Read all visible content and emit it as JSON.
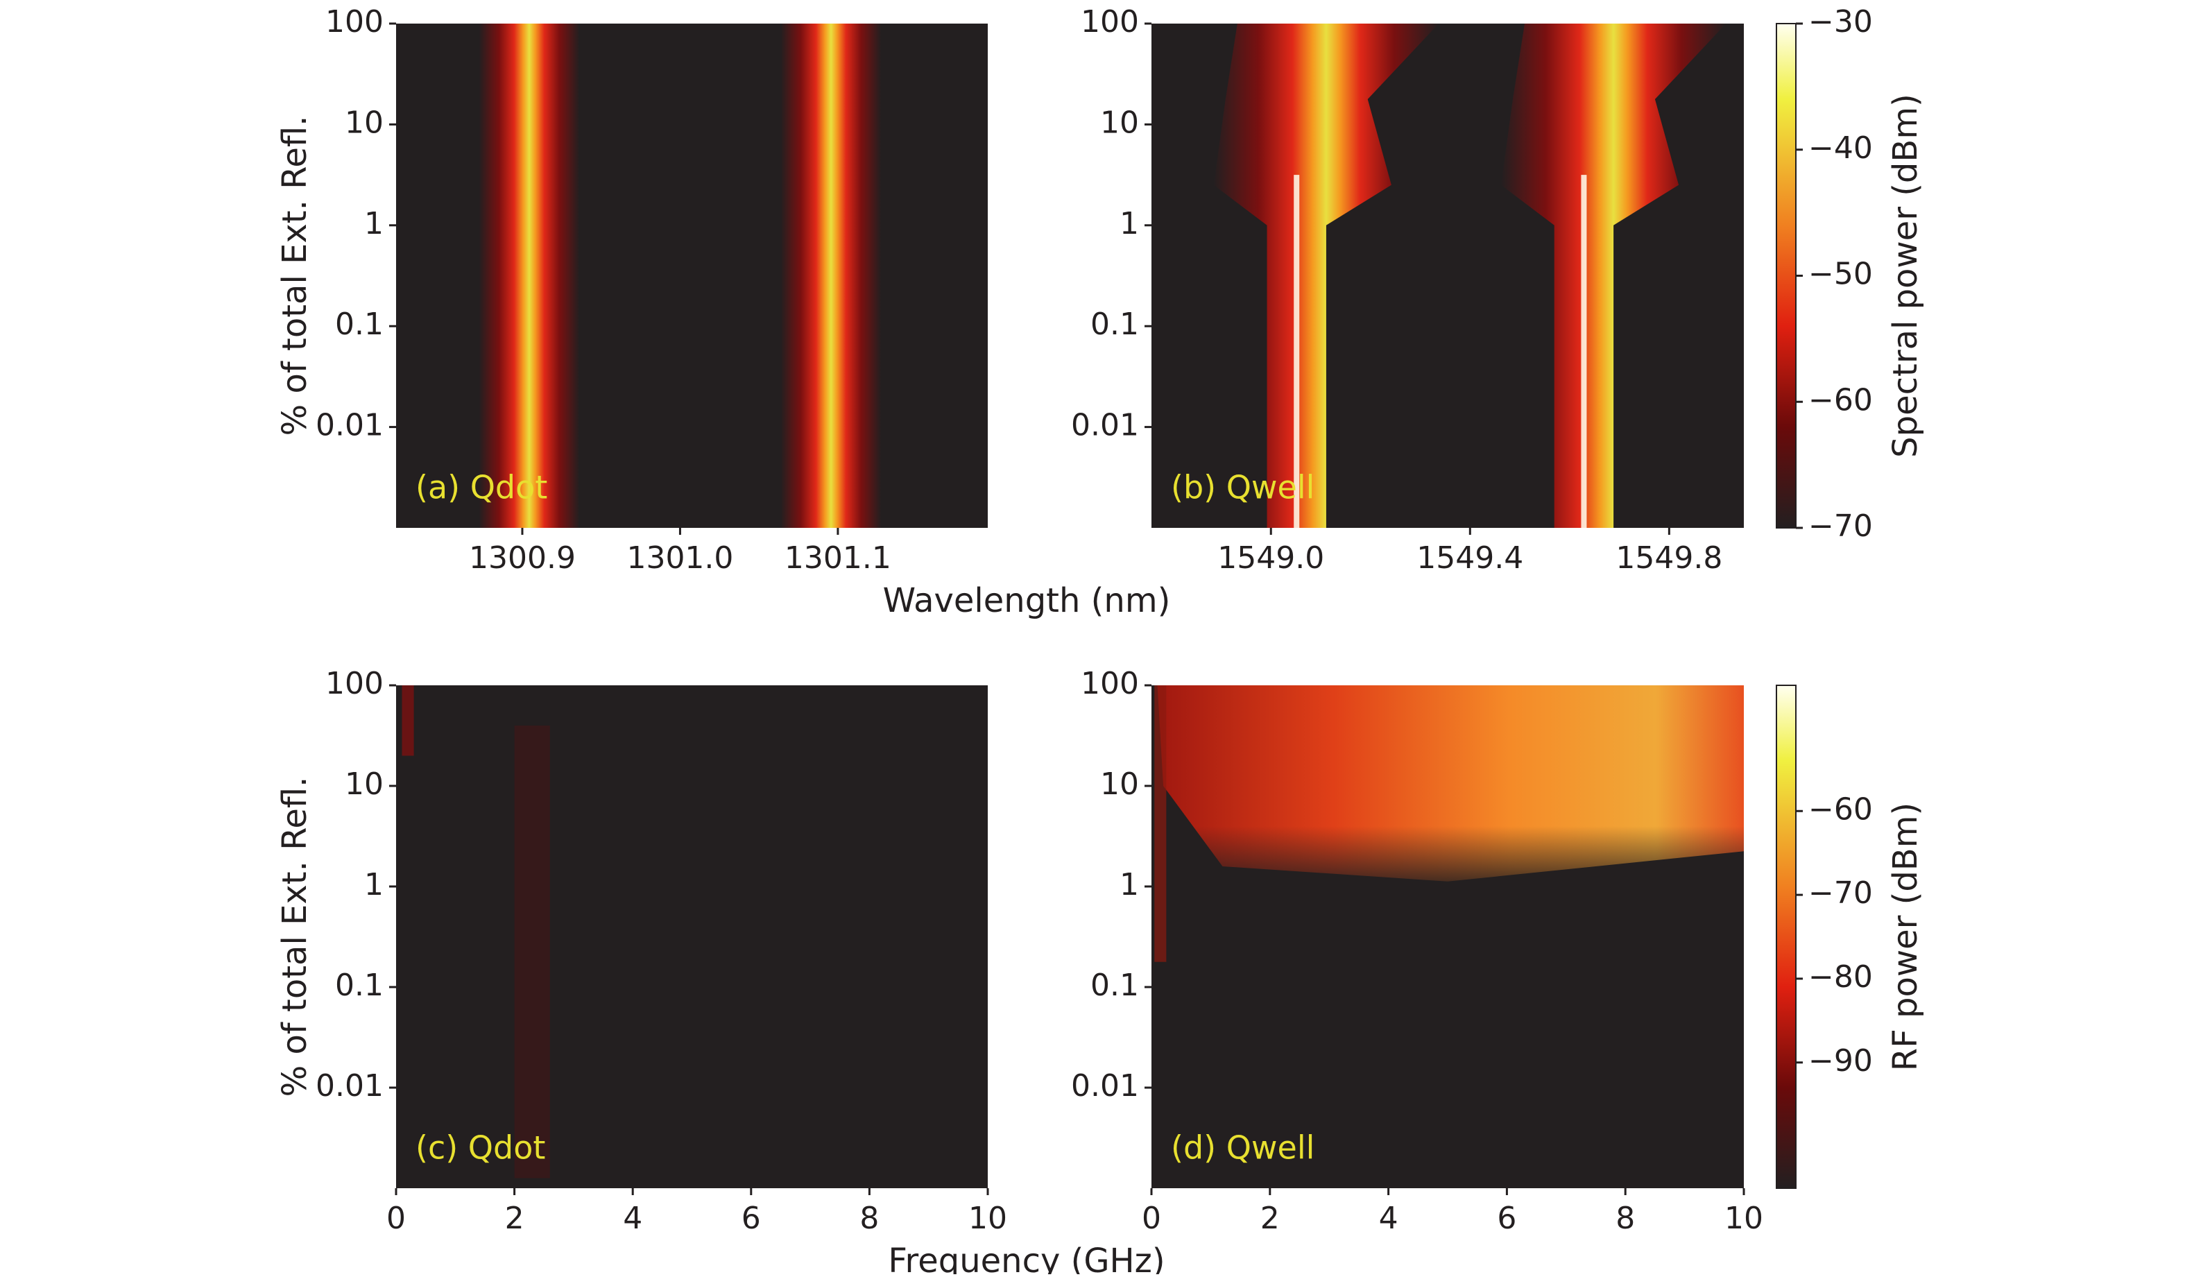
{
  "chart_data": [
    {
      "type": "heatmap",
      "annotation": "(a) Qdot",
      "ylabel": "% of total Ext. Refl.",
      "xlabel": "Wavelength (nm)",
      "xlim": [
        1300.82,
        1301.195
      ],
      "xticks": [
        1300.9,
        {
          "value": 1301.0,
          "label": "1301.0"
        },
        1301.1
      ],
      "ylim": [
        0.001,
        100
      ],
      "yticks": [
        100,
        10,
        1,
        0.1,
        0.01
      ],
      "log_y": true
    },
    {
      "type": "heatmap",
      "annotation": "(b) Qwell",
      "xlim": [
        1548.76,
        1549.95
      ],
      "xticks": [
        {
          "value": 1549.0,
          "label": "1549.0"
        },
        1549.4,
        1549.8
      ],
      "ylim": [
        0.001,
        100
      ],
      "yticks": [
        100,
        10,
        1,
        0.1,
        0.01
      ],
      "log_y": true,
      "colorbar": {
        "label": "Spectral power (dBm)",
        "clim": [
          -70,
          -30
        ],
        "ticks": [
          {
            "value": -30,
            "label": "−30"
          },
          {
            "value": -40,
            "label": "−40"
          },
          {
            "value": -50,
            "label": "−50"
          },
          {
            "value": -60,
            "label": "−60"
          },
          {
            "value": -70,
            "label": "−70"
          }
        ]
      }
    },
    {
      "type": "heatmap",
      "annotation": "(c) Qdot",
      "ylabel": "% of total Ext. Refl.",
      "xlabel": "Frequency (GHz)",
      "xlim": [
        0,
        10
      ],
      "xticks": [
        0,
        2,
        4,
        6,
        8,
        10
      ],
      "ylim": [
        0.001,
        100
      ],
      "yticks": [
        100,
        10,
        1,
        0.1,
        0.01
      ],
      "log_y": true
    },
    {
      "type": "heatmap",
      "annotation": "(d) Qwell",
      "xlim": [
        0,
        10
      ],
      "xticks": [
        0,
        2,
        4,
        6,
        8,
        10
      ],
      "ylim": [
        0.001,
        100
      ],
      "yticks": [
        100,
        10,
        1,
        0.1,
        0.01
      ],
      "log_y": true,
      "colorbar": {
        "label": "RF power (dBm)",
        "clim": [
          -105,
          -45
        ],
        "ticks": [
          {
            "value": -60,
            "label": "−60"
          },
          {
            "value": -70,
            "label": "−70"
          },
          {
            "value": -80,
            "label": "−80"
          },
          {
            "value": -90,
            "label": "−90"
          }
        ]
      }
    }
  ]
}
